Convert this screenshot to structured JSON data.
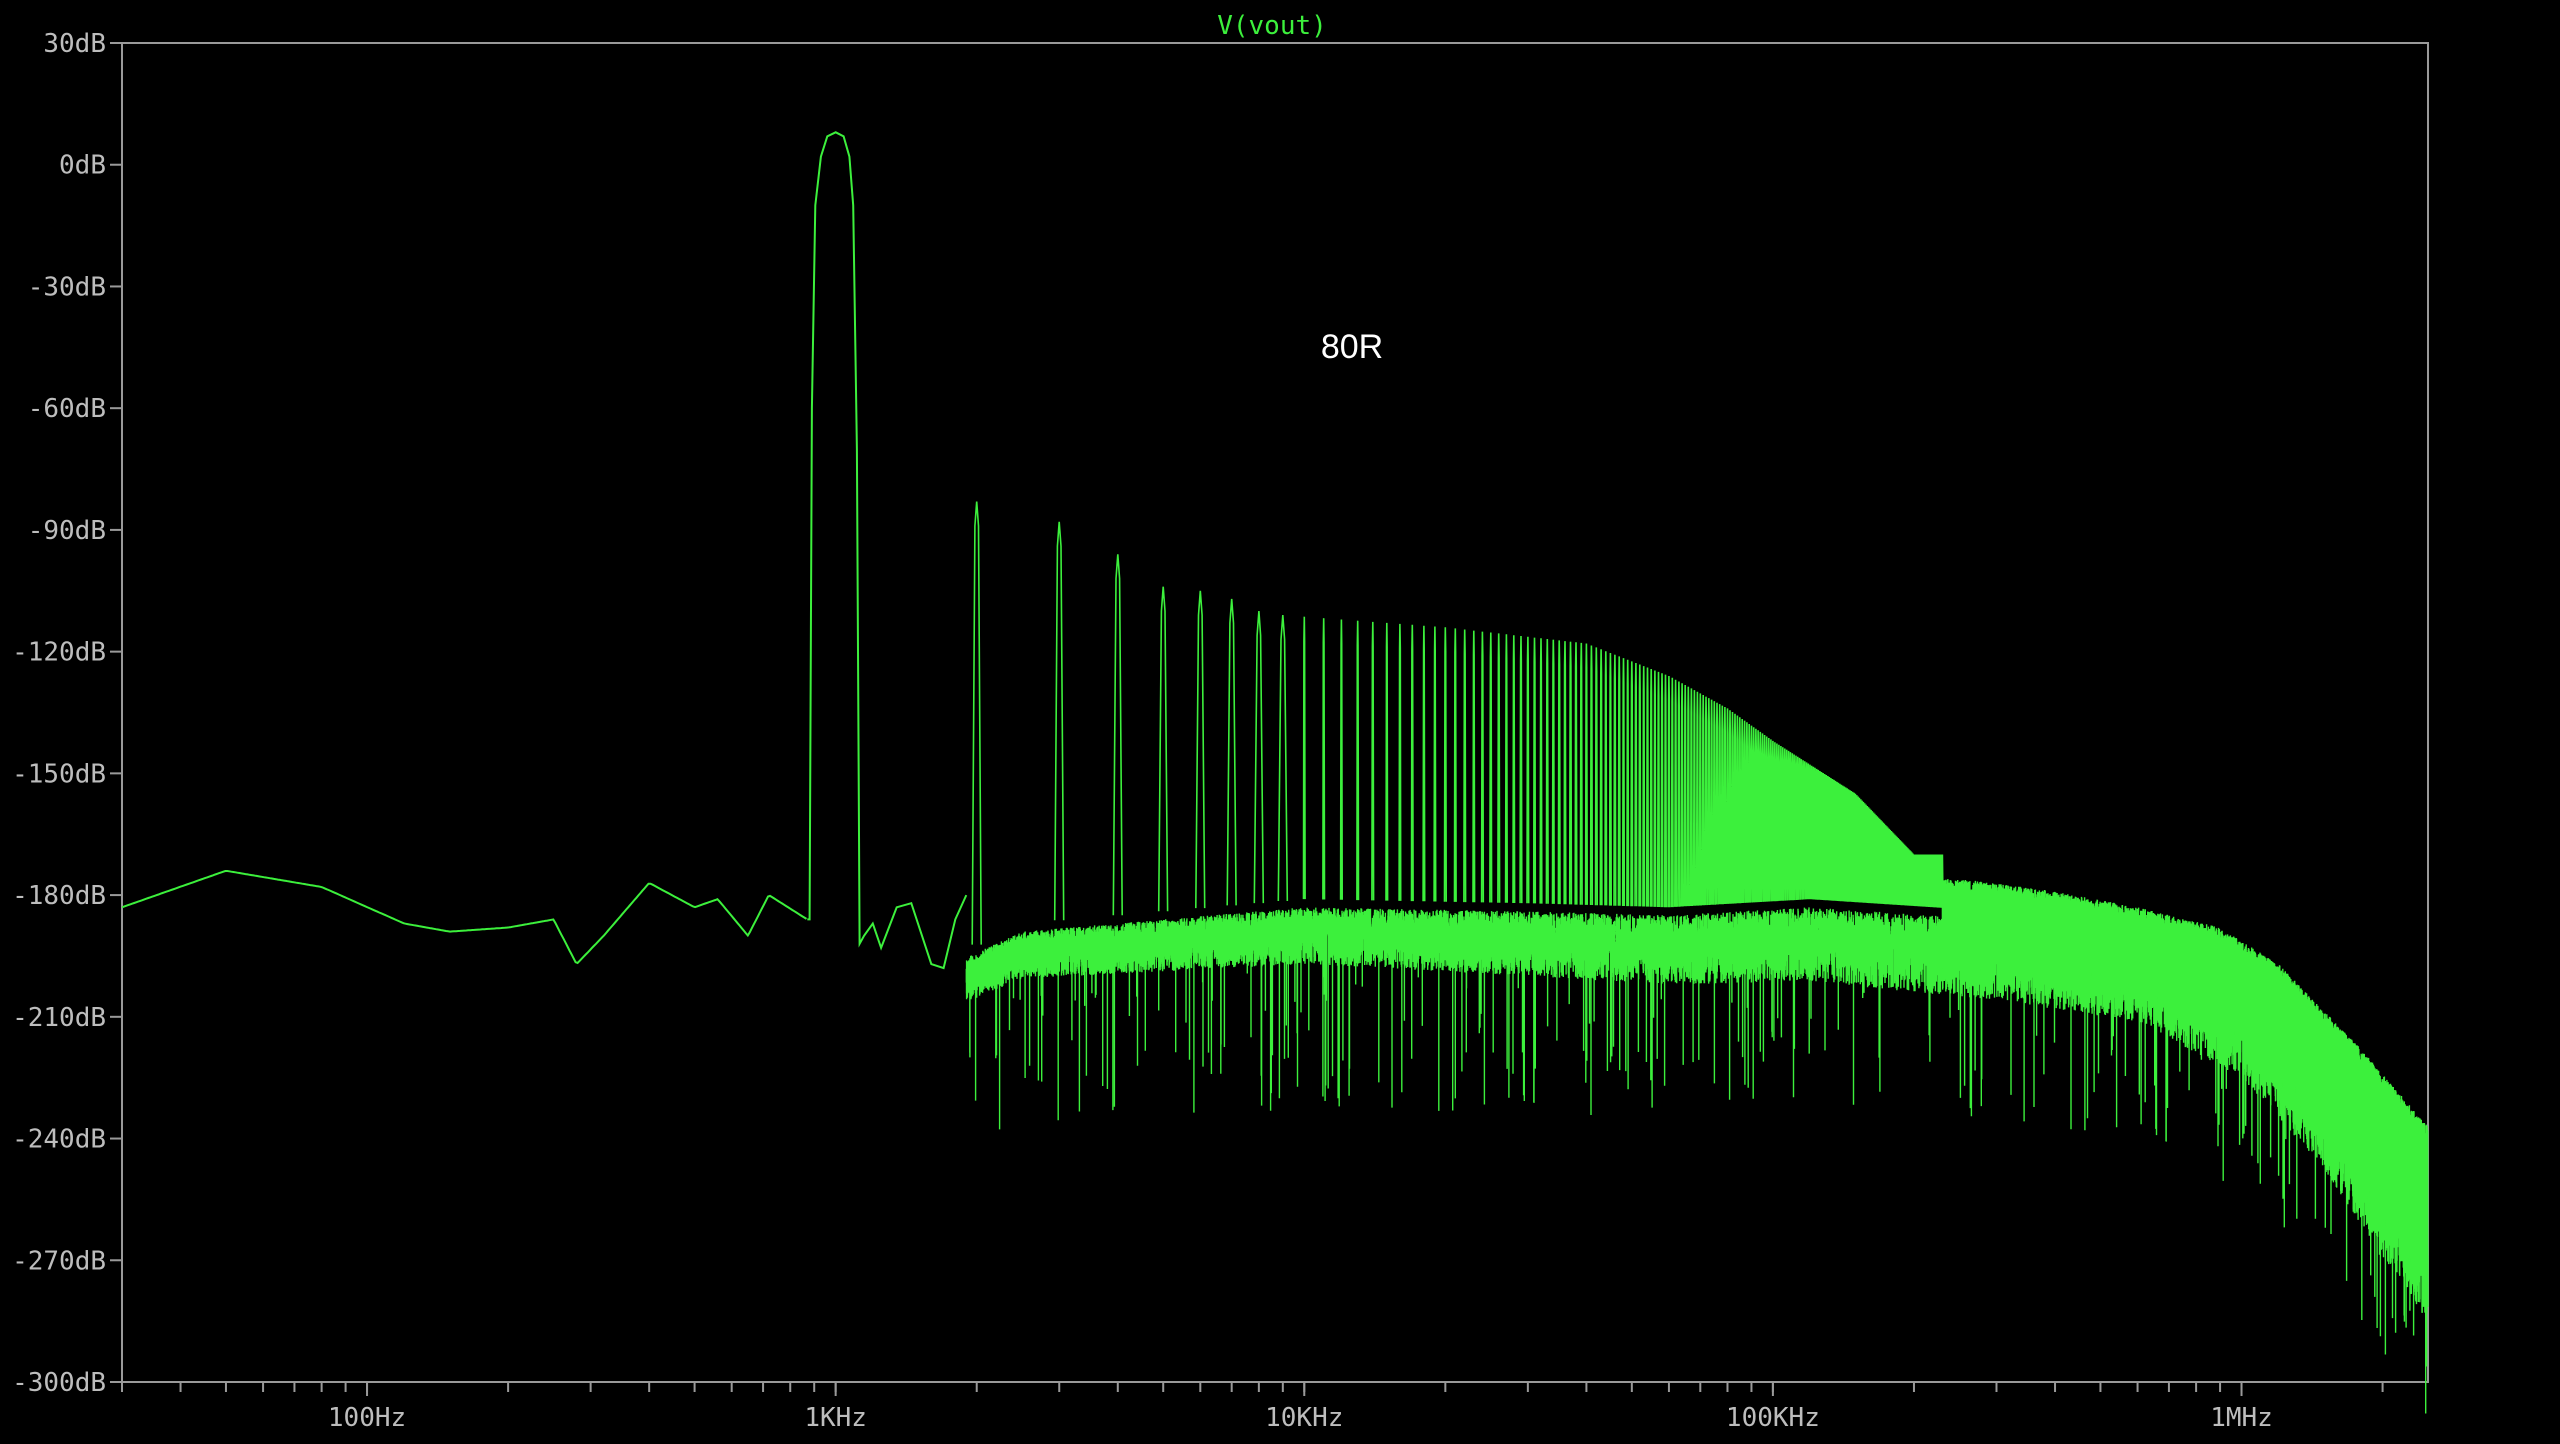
{
  "chart_data": {
    "type": "line",
    "title": "V(vout)",
    "annotation": "80R",
    "x_scale": "log",
    "xlim": [
      30,
      2500000
    ],
    "ylim": [
      -300,
      30
    ],
    "y_ticks": [
      {
        "value": 30,
        "label": "30dB"
      },
      {
        "value": 0,
        "label": "0dB"
      },
      {
        "value": -30,
        "label": "-30dB"
      },
      {
        "value": -60,
        "label": "-60dB"
      },
      {
        "value": -90,
        "label": "-90dB"
      },
      {
        "value": -120,
        "label": "-120dB"
      },
      {
        "value": -150,
        "label": "-150dB"
      },
      {
        "value": -180,
        "label": "-180dB"
      },
      {
        "value": -210,
        "label": "-210dB"
      },
      {
        "value": -240,
        "label": "-240dB"
      },
      {
        "value": -270,
        "label": "-270dB"
      },
      {
        "value": -300,
        "label": "-300dB"
      }
    ],
    "x_ticks": [
      {
        "value": 100,
        "label": "100Hz"
      },
      {
        "value": 1000,
        "label": "1KHz"
      },
      {
        "value": 10000,
        "label": "10KHz"
      },
      {
        "value": 100000,
        "label": "100KHz"
      },
      {
        "value": 1000000,
        "label": "1MHz"
      }
    ],
    "series": [
      {
        "name": "V(vout)",
        "color": "#3cf03c",
        "fundamental_hz": 1000,
        "fundamental_db": 8,
        "harmonic_peaks": [
          {
            "x": 2000,
            "y": -83
          },
          {
            "x": 3000,
            "y": -88
          },
          {
            "x": 4000,
            "y": -96
          },
          {
            "x": 5000,
            "y": -104
          },
          {
            "x": 6000,
            "y": -105
          },
          {
            "x": 7000,
            "y": -107
          },
          {
            "x": 8000,
            "y": -110
          },
          {
            "x": 9000,
            "y": -111
          },
          {
            "x": 20000,
            "y": -114
          },
          {
            "x": 40000,
            "y": -118
          },
          {
            "x": 60000,
            "y": -126
          },
          {
            "x": 80000,
            "y": -134
          },
          {
            "x": 100000,
            "y": -142
          },
          {
            "x": 150000,
            "y": -155
          },
          {
            "x": 200000,
            "y": -170
          }
        ],
        "noise_floor": [
          {
            "x": 30,
            "y": -183
          },
          {
            "x": 50,
            "y": -174
          },
          {
            "x": 80,
            "y": -178
          },
          {
            "x": 120,
            "y": -187
          },
          {
            "x": 150,
            "y": -189
          },
          {
            "x": 200,
            "y": -188
          },
          {
            "x": 250,
            "y": -186
          },
          {
            "x": 280,
            "y": -197
          },
          {
            "x": 320,
            "y": -190
          },
          {
            "x": 400,
            "y": -177
          },
          {
            "x": 500,
            "y": -183
          },
          {
            "x": 560,
            "y": -181
          },
          {
            "x": 650,
            "y": -190
          },
          {
            "x": 720,
            "y": -180
          },
          {
            "x": 870,
            "y": -186
          },
          {
            "x": 1100,
            "y": -192
          },
          {
            "x": 1500,
            "y": -180
          },
          {
            "x": 1700,
            "y": -198
          },
          {
            "x": 2500,
            "y": -189
          },
          {
            "x": 10000,
            "y": -183
          },
          {
            "x": 30000,
            "y": -184
          },
          {
            "x": 60000,
            "y": -185
          },
          {
            "x": 120000,
            "y": -183
          },
          {
            "x": 300000,
            "y": -186
          },
          {
            "x": 600000,
            "y": -190
          },
          {
            "x": 1000000,
            "y": -203
          },
          {
            "x": 1500000,
            "y": -225
          },
          {
            "x": 2500000,
            "y": -262
          }
        ],
        "envelope_top": [
          {
            "x": 250000,
            "y": -176
          },
          {
            "x": 400000,
            "y": -179
          },
          {
            "x": 600000,
            "y": -183
          },
          {
            "x": 900000,
            "y": -188
          },
          {
            "x": 1200000,
            "y": -197
          },
          {
            "x": 1800000,
            "y": -218
          },
          {
            "x": 2500000,
            "y": -237
          }
        ]
      }
    ],
    "grid": false,
    "legend": "none"
  }
}
